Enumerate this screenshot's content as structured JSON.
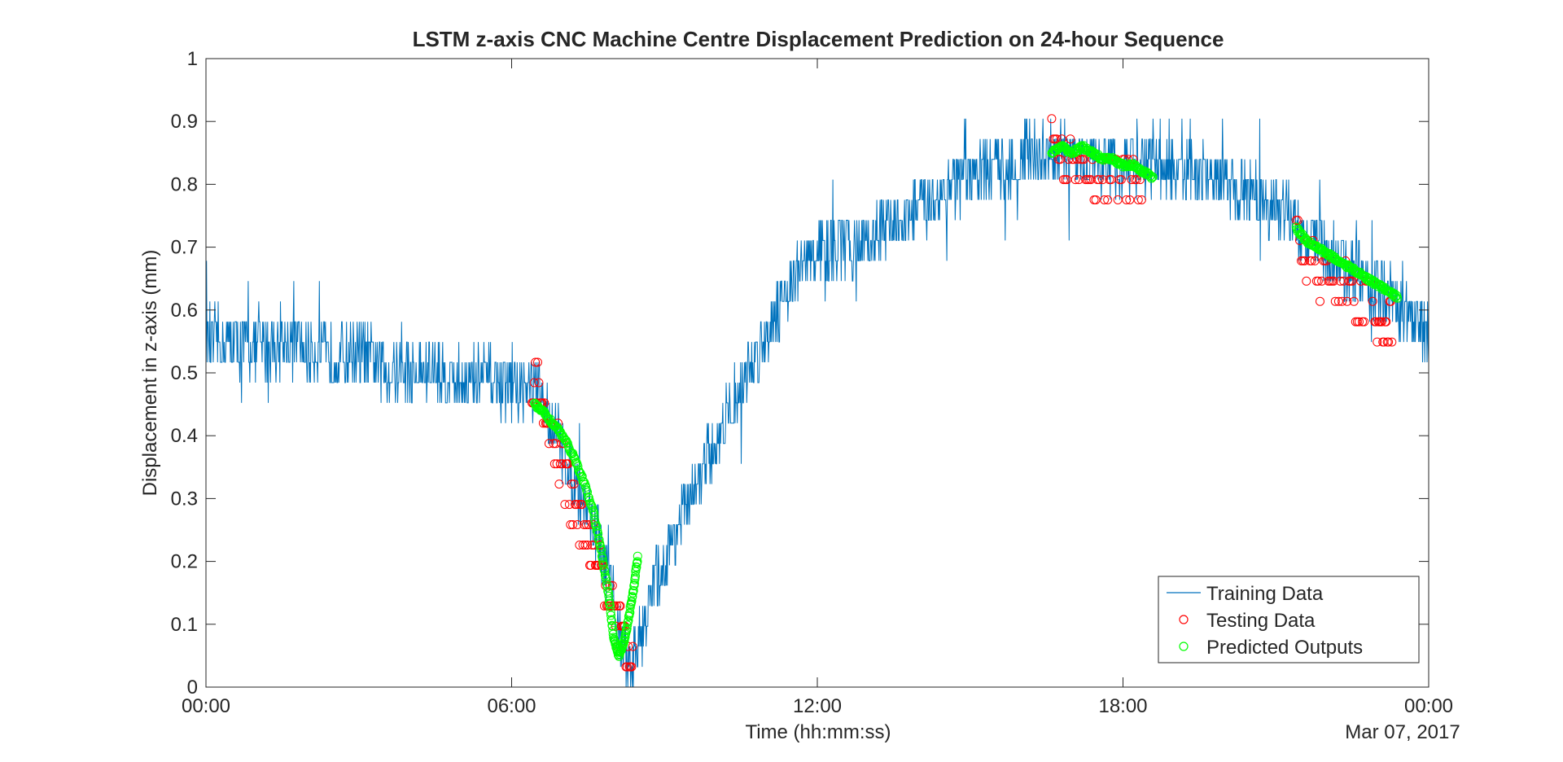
{
  "chart_data": {
    "type": "line",
    "title": "LSTM z-axis CNC Machine Centre Displacement Prediction on 24-hour Sequence",
    "xlabel": "Time (hh:mm:ss)",
    "ylabel": "Displacement in z-axis (mm)",
    "x_date_label": "Mar 07, 2017",
    "xlim": [
      0,
      24
    ],
    "ylim": [
      0,
      1
    ],
    "x_ticks": [
      {
        "value": 0,
        "label": "00:00"
      },
      {
        "value": 6,
        "label": "06:00"
      },
      {
        "value": 12,
        "label": "12:00"
      },
      {
        "value": 18,
        "label": "18:00"
      },
      {
        "value": 24,
        "label": "00:00"
      }
    ],
    "y_ticks": [
      {
        "value": 0,
        "label": "0"
      },
      {
        "value": 0.1,
        "label": "0.1"
      },
      {
        "value": 0.2,
        "label": "0.2"
      },
      {
        "value": 0.3,
        "label": "0.3"
      },
      {
        "value": 0.4,
        "label": "0.4"
      },
      {
        "value": 0.5,
        "label": "0.5"
      },
      {
        "value": 0.6,
        "label": "0.6"
      },
      {
        "value": 0.7,
        "label": "0.7"
      },
      {
        "value": 0.8,
        "label": "0.8"
      },
      {
        "value": 0.9,
        "label": "0.9"
      },
      {
        "value": 1,
        "label": "1"
      }
    ],
    "grid": false,
    "legend_position": "bottom-right",
    "series": [
      {
        "name": "Training Data",
        "kind": "line",
        "color": "#0072BD",
        "x": [
          0,
          0.5,
          1,
          1.5,
          2,
          2.5,
          3,
          3.5,
          4,
          4.5,
          5,
          5.5,
          6,
          6.4,
          6.7,
          7,
          7.3,
          7.6,
          7.9,
          8.1,
          8.3,
          8.5,
          8.8,
          9.2,
          9.6,
          10,
          10.4,
          10.8,
          11.2,
          11.6,
          12,
          12.5,
          13,
          13.5,
          14,
          14.5,
          15,
          15.5,
          16,
          16.5,
          17,
          17.5,
          18,
          18.5,
          19,
          19.5,
          20,
          20.5,
          21,
          21.5,
          22,
          22.5,
          23,
          23.5,
          24
        ],
        "y": [
          0.55,
          0.55,
          0.54,
          0.55,
          0.54,
          0.52,
          0.53,
          0.51,
          0.5,
          0.5,
          0.49,
          0.49,
          0.48,
          0.48,
          0.44,
          0.38,
          0.32,
          0.26,
          0.17,
          0.09,
          0.03,
          0.08,
          0.16,
          0.24,
          0.31,
          0.39,
          0.46,
          0.53,
          0.6,
          0.66,
          0.69,
          0.7,
          0.71,
          0.74,
          0.76,
          0.79,
          0.81,
          0.83,
          0.84,
          0.85,
          0.84,
          0.84,
          0.83,
          0.83,
          0.82,
          0.81,
          0.8,
          0.78,
          0.77,
          0.73,
          0.69,
          0.66,
          0.63,
          0.6,
          0.56
        ],
        "noise_amplitude": 0.05
      },
      {
        "name": "Testing Data",
        "kind": "scatter",
        "color": "#FF0000",
        "x": [
          6.4,
          6.6,
          6.8,
          7.0,
          7.2,
          7.4,
          7.6,
          7.8,
          8.0,
          8.2,
          8.4,
          16.6,
          16.9,
          17.2,
          17.5,
          17.8,
          18.1,
          18.4,
          21.4,
          21.7,
          22.0,
          22.3,
          22.6,
          22.9,
          23.1,
          23.3
        ],
        "y": [
          0.48,
          0.45,
          0.39,
          0.35,
          0.29,
          0.26,
          0.22,
          0.19,
          0.13,
          0.07,
          0.03,
          0.87,
          0.84,
          0.84,
          0.81,
          0.81,
          0.81,
          0.81,
          0.71,
          0.68,
          0.65,
          0.64,
          0.61,
          0.61,
          0.58,
          0.58
        ],
        "spread": 0.04
      },
      {
        "name": "Predicted Outputs",
        "kind": "scatter",
        "color": "#00FF00",
        "x": [
          6.45,
          6.6,
          6.8,
          7.0,
          7.2,
          7.4,
          7.6,
          7.75,
          7.9,
          8.0,
          8.1,
          8.2,
          8.3,
          8.4,
          8.48,
          16.6,
          16.8,
          17.0,
          17.2,
          17.4,
          17.6,
          17.8,
          18.0,
          18.2,
          18.4,
          18.6,
          21.4,
          21.6,
          21.8,
          22.0,
          22.2,
          22.4,
          22.6,
          22.8,
          23.0,
          23.2,
          23.4
        ],
        "y": [
          0.45,
          0.44,
          0.42,
          0.4,
          0.37,
          0.33,
          0.28,
          0.22,
          0.15,
          0.08,
          0.05,
          0.07,
          0.11,
          0.16,
          0.21,
          0.85,
          0.86,
          0.85,
          0.86,
          0.85,
          0.84,
          0.84,
          0.83,
          0.83,
          0.82,
          0.81,
          0.73,
          0.71,
          0.7,
          0.69,
          0.68,
          0.67,
          0.66,
          0.65,
          0.64,
          0.63,
          0.62
        ]
      }
    ]
  }
}
